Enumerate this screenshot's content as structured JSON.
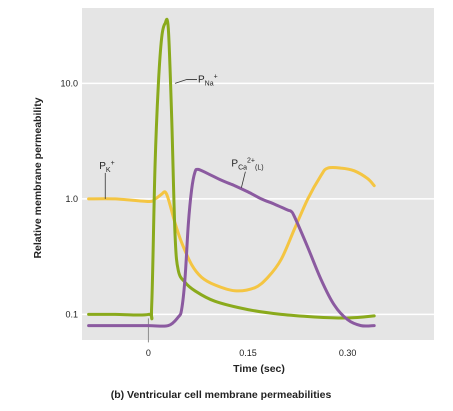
{
  "chart_data": {
    "type": "line",
    "ylabel": "Relative membrane permeability",
    "xlabel": "Time (sec)",
    "caption": "(b) Ventricular cell membrane permeabilities",
    "y_scale": "log",
    "ylim": [
      0.06,
      45
    ],
    "xlim": [
      -0.1,
      0.43
    ],
    "grid": true,
    "x_ticks": [
      {
        "value": 0,
        "label": "0"
      },
      {
        "value": 0.15,
        "label": "0.15"
      },
      {
        "value": 0.3,
        "label": "0.30"
      }
    ],
    "y_ticks": [
      {
        "value": 0.1,
        "label": "0.1"
      },
      {
        "value": 1.0,
        "label": "1.0"
      },
      {
        "value": 10.0,
        "label": "10.0"
      }
    ],
    "series": [
      {
        "name": "PK+",
        "label": {
          "main": "P",
          "sub": "K",
          "sup": "+"
        },
        "color": "#f4c542",
        "points": [
          [
            -0.09,
            1.0
          ],
          [
            -0.05,
            1.0
          ],
          [
            0.0,
            0.95
          ],
          [
            0.01,
            1.0
          ],
          [
            0.02,
            1.1
          ],
          [
            0.025,
            1.15
          ],
          [
            0.03,
            1.0
          ],
          [
            0.04,
            0.62
          ],
          [
            0.05,
            0.42
          ],
          [
            0.065,
            0.27
          ],
          [
            0.08,
            0.21
          ],
          [
            0.1,
            0.18
          ],
          [
            0.13,
            0.16
          ],
          [
            0.16,
            0.17
          ],
          [
            0.18,
            0.21
          ],
          [
            0.2,
            0.3
          ],
          [
            0.22,
            0.55
          ],
          [
            0.24,
            1.0
          ],
          [
            0.26,
            1.6
          ],
          [
            0.27,
            1.85
          ],
          [
            0.29,
            1.85
          ],
          [
            0.31,
            1.75
          ],
          [
            0.33,
            1.5
          ],
          [
            0.34,
            1.3
          ]
        ]
      },
      {
        "name": "PNa+",
        "label": {
          "main": "P",
          "sub": "Na",
          "sup": "+"
        },
        "color": "#8aaa1c",
        "points": [
          [
            -0.09,
            0.1
          ],
          [
            -0.05,
            0.1
          ],
          [
            0.0,
            0.1
          ],
          [
            0.005,
            0.12
          ],
          [
            0.01,
            2.0
          ],
          [
            0.015,
            10.0
          ],
          [
            0.02,
            25.0
          ],
          [
            0.025,
            33.0
          ],
          [
            0.03,
            30.0
          ],
          [
            0.035,
            5.0
          ],
          [
            0.04,
            0.5
          ],
          [
            0.045,
            0.24
          ],
          [
            0.055,
            0.19
          ],
          [
            0.07,
            0.16
          ],
          [
            0.1,
            0.13
          ],
          [
            0.15,
            0.11
          ],
          [
            0.2,
            0.1
          ],
          [
            0.25,
            0.095
          ],
          [
            0.3,
            0.093
          ],
          [
            0.34,
            0.097
          ]
        ]
      },
      {
        "name": "PCa2+(L)",
        "label": {
          "main": "P",
          "sub": "Ca",
          "sup": "2+",
          "tail": "(L)"
        },
        "color": "#8b5aa0",
        "points": [
          [
            -0.09,
            0.08
          ],
          [
            -0.05,
            0.08
          ],
          [
            0.0,
            0.08
          ],
          [
            0.03,
            0.08
          ],
          [
            0.045,
            0.095
          ],
          [
            0.05,
            0.11
          ],
          [
            0.055,
            0.2
          ],
          [
            0.06,
            0.6
          ],
          [
            0.065,
            1.2
          ],
          [
            0.07,
            1.7
          ],
          [
            0.075,
            1.8
          ],
          [
            0.09,
            1.65
          ],
          [
            0.11,
            1.45
          ],
          [
            0.13,
            1.3
          ],
          [
            0.15,
            1.15
          ],
          [
            0.17,
            1.0
          ],
          [
            0.19,
            0.9
          ],
          [
            0.21,
            0.8
          ],
          [
            0.215,
            0.78
          ],
          [
            0.22,
            0.7
          ],
          [
            0.24,
            0.38
          ],
          [
            0.26,
            0.2
          ],
          [
            0.28,
            0.12
          ],
          [
            0.3,
            0.09
          ],
          [
            0.32,
            0.08
          ],
          [
            0.34,
            0.08
          ]
        ]
      }
    ],
    "annotations": [
      {
        "series": "PNa+",
        "x": 0.04,
        "y": 10.0
      },
      {
        "series": "PK+",
        "x": -0.065,
        "y": 1.0
      },
      {
        "series": "PCa2+(L)",
        "x": 0.14,
        "y": 1.25
      }
    ],
    "colors": {
      "plot_bg": "#e5e5e5",
      "grid": "#ffffff",
      "guide": "#8c8c8c"
    }
  }
}
